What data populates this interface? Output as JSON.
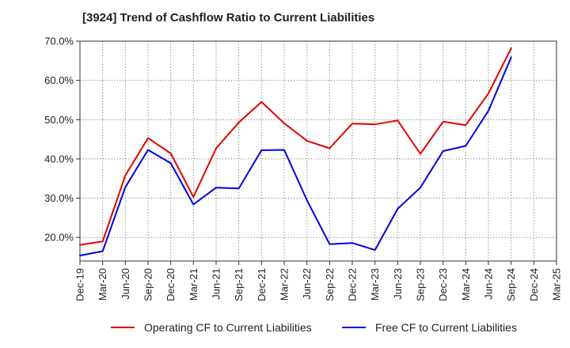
{
  "title": "[3924]  Trend of Cashflow Ratio to Current Liabilities",
  "chart_data": {
    "type": "line",
    "title": "[3924]  Trend of Cashflow Ratio to Current Liabilities",
    "xlabel": "",
    "ylabel": "",
    "x_ticks": [
      "Dec-19",
      "Mar-20",
      "Jun-20",
      "Sep-20",
      "Dec-20",
      "Mar-21",
      "Jun-21",
      "Sep-21",
      "Dec-21",
      "Mar-22",
      "Jun-22",
      "Sep-22",
      "Dec-22",
      "Mar-23",
      "Jun-23",
      "Sep-23",
      "Dec-23",
      "Mar-24",
      "Jun-24",
      "Sep-24",
      "Dec-24",
      "Mar-25"
    ],
    "y_ticks": [
      "20.0%",
      "30.0%",
      "40.0%",
      "50.0%",
      "60.0%",
      "70.0%"
    ],
    "ylim": [
      14,
      70
    ],
    "grid": true,
    "legend_position": "bottom",
    "series": [
      {
        "name": "Operating CF to Current Liabilities",
        "color": "#e00000",
        "x": [
          "Dec-19",
          "Mar-20",
          "Jun-20",
          "Sep-20",
          "Dec-20",
          "Mar-21",
          "Jun-21",
          "Sep-21",
          "Dec-21",
          "Mar-22",
          "Jun-22",
          "Sep-22",
          "Dec-22",
          "Mar-23",
          "Jun-23",
          "Sep-23",
          "Dec-23",
          "Mar-24",
          "Jun-24",
          "Sep-24"
        ],
        "values": [
          18.1,
          19.0,
          35.8,
          45.3,
          41.4,
          30.3,
          42.7,
          49.3,
          54.5,
          49.1,
          44.6,
          42.7,
          49.0,
          48.8,
          49.8,
          41.3,
          49.5,
          48.6,
          56.7,
          68.2
        ]
      },
      {
        "name": "Free CF to Current Liabilities",
        "color": "#0000dd",
        "x": [
          "Dec-19",
          "Mar-20",
          "Jun-20",
          "Sep-20",
          "Dec-20",
          "Mar-21",
          "Jun-21",
          "Sep-21",
          "Dec-21",
          "Mar-22",
          "Jun-22",
          "Sep-22",
          "Dec-22",
          "Mar-23",
          "Jun-23",
          "Sep-23",
          "Dec-23",
          "Mar-24",
          "Jun-24",
          "Sep-24"
        ],
        "values": [
          15.4,
          16.5,
          32.8,
          42.3,
          38.9,
          28.4,
          32.7,
          32.5,
          42.2,
          42.3,
          29.5,
          18.3,
          18.6,
          16.8,
          27.3,
          32.7,
          42.0,
          43.3,
          52.3,
          65.9
        ]
      }
    ]
  }
}
